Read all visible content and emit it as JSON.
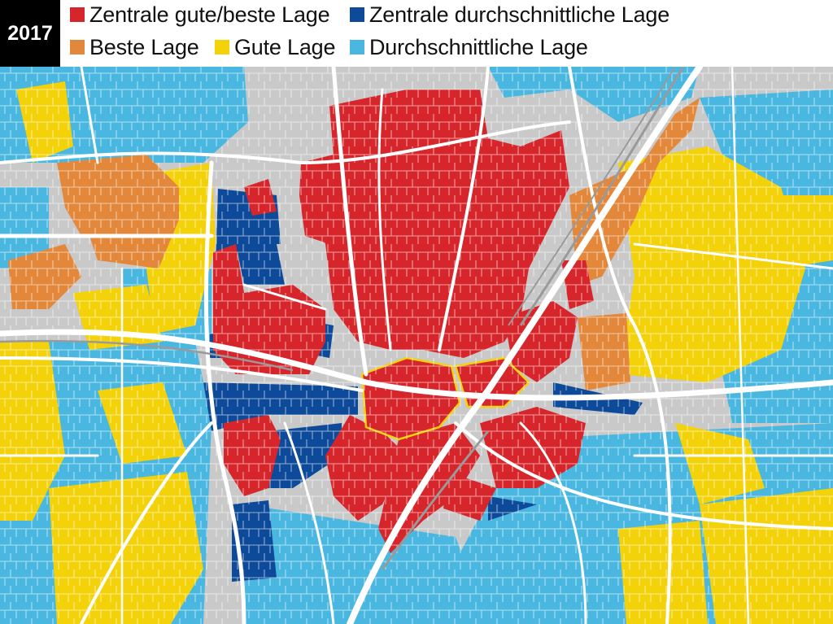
{
  "header": {
    "year": "2017"
  },
  "legend": [
    {
      "label": "Zentrale gute/beste Lage",
      "color": "#d7262b"
    },
    {
      "label": "Zentrale durchschnittliche Lage",
      "color": "#0e4a9a"
    },
    {
      "label": "Beste Lage",
      "color": "#e3883a"
    },
    {
      "label": "Gute Lage",
      "color": "#f3d20a"
    },
    {
      "label": "Durchschnittliche Lage",
      "color": "#4ab7e1"
    }
  ],
  "map": {
    "base_color": "#c9c9c9",
    "road_color": "#ffffff"
  }
}
